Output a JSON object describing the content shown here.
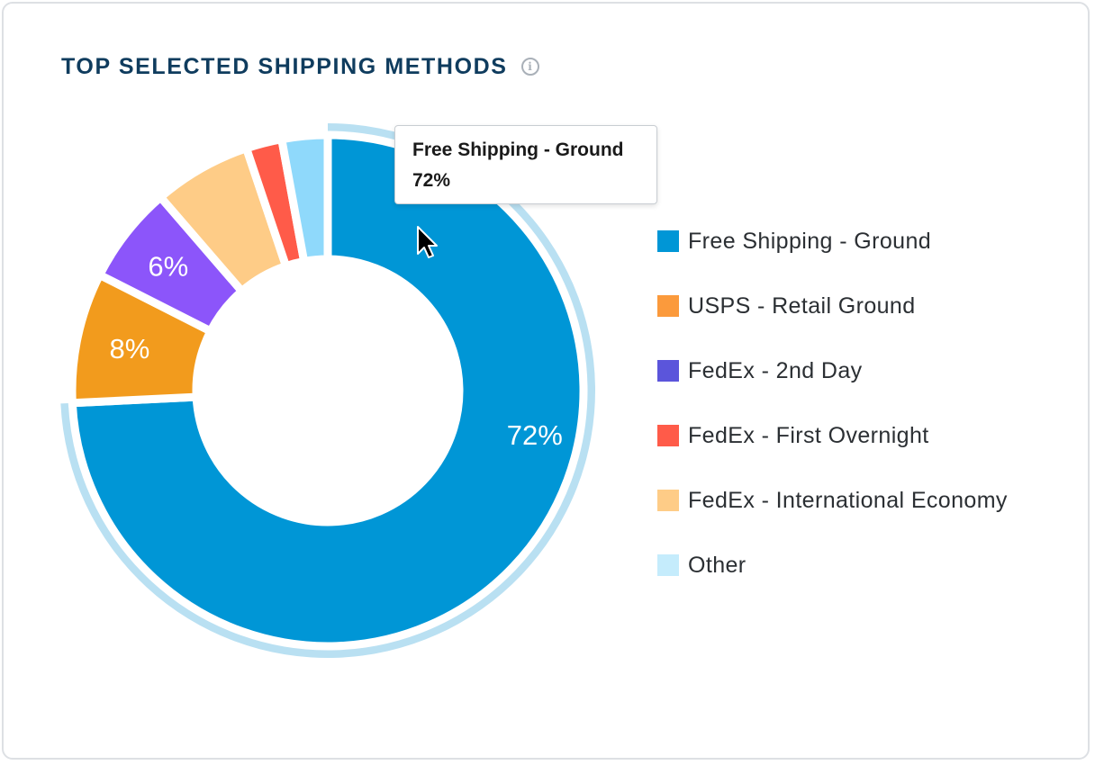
{
  "header": {
    "title": "TOP SELECTED SHIPPING METHODS",
    "info_icon": "info-icon"
  },
  "tooltip": {
    "name": "Free Shipping - Ground",
    "value": "72%"
  },
  "chart_data": {
    "type": "pie",
    "variant": "donut",
    "title": "TOP SELECTED SHIPPING METHODS",
    "legend_position": "right",
    "highlighted": "Free Shipping - Ground",
    "slices": [
      {
        "name": "Free Shipping - Ground",
        "value": 72,
        "label": "72%",
        "color": "#0096d6",
        "legend_color": "#0096d6"
      },
      {
        "name": "USPS - Retail Ground",
        "value": 8,
        "label": "8%",
        "color": "#f29b1d",
        "legend_color": "#fb9a3c"
      },
      {
        "name": "FedEx - 2nd Day",
        "value": 6,
        "label": "6%",
        "color": "#8c55fa",
        "legend_color": "#5b55db"
      },
      {
        "name": "FedEx - International Economy",
        "value": 6,
        "label": "",
        "color": "#fecc87",
        "legend_color": "#fecc87"
      },
      {
        "name": "FedEx - First Overnight",
        "value": 2.2,
        "label": "",
        "color": "#ff5b49",
        "legend_color": "#ff5b49"
      },
      {
        "name": "Other",
        "value": 2.8,
        "label": "",
        "color": "#8fd9fb",
        "legend_color": "#c5ecfc"
      }
    ],
    "legend": [
      {
        "name": "Free Shipping - Ground",
        "color": "#0096d6"
      },
      {
        "name": "USPS - Retail Ground",
        "color": "#fb9a3c"
      },
      {
        "name": "FedEx - 2nd Day",
        "color": "#5b55db"
      },
      {
        "name": "FedEx - First Overnight",
        "color": "#ff5b49"
      },
      {
        "name": "FedEx - International Economy",
        "color": "#fecc87"
      },
      {
        "name": "Other",
        "color": "#c5ecfc"
      }
    ],
    "hover_ring_color": "#b9e0f2"
  }
}
